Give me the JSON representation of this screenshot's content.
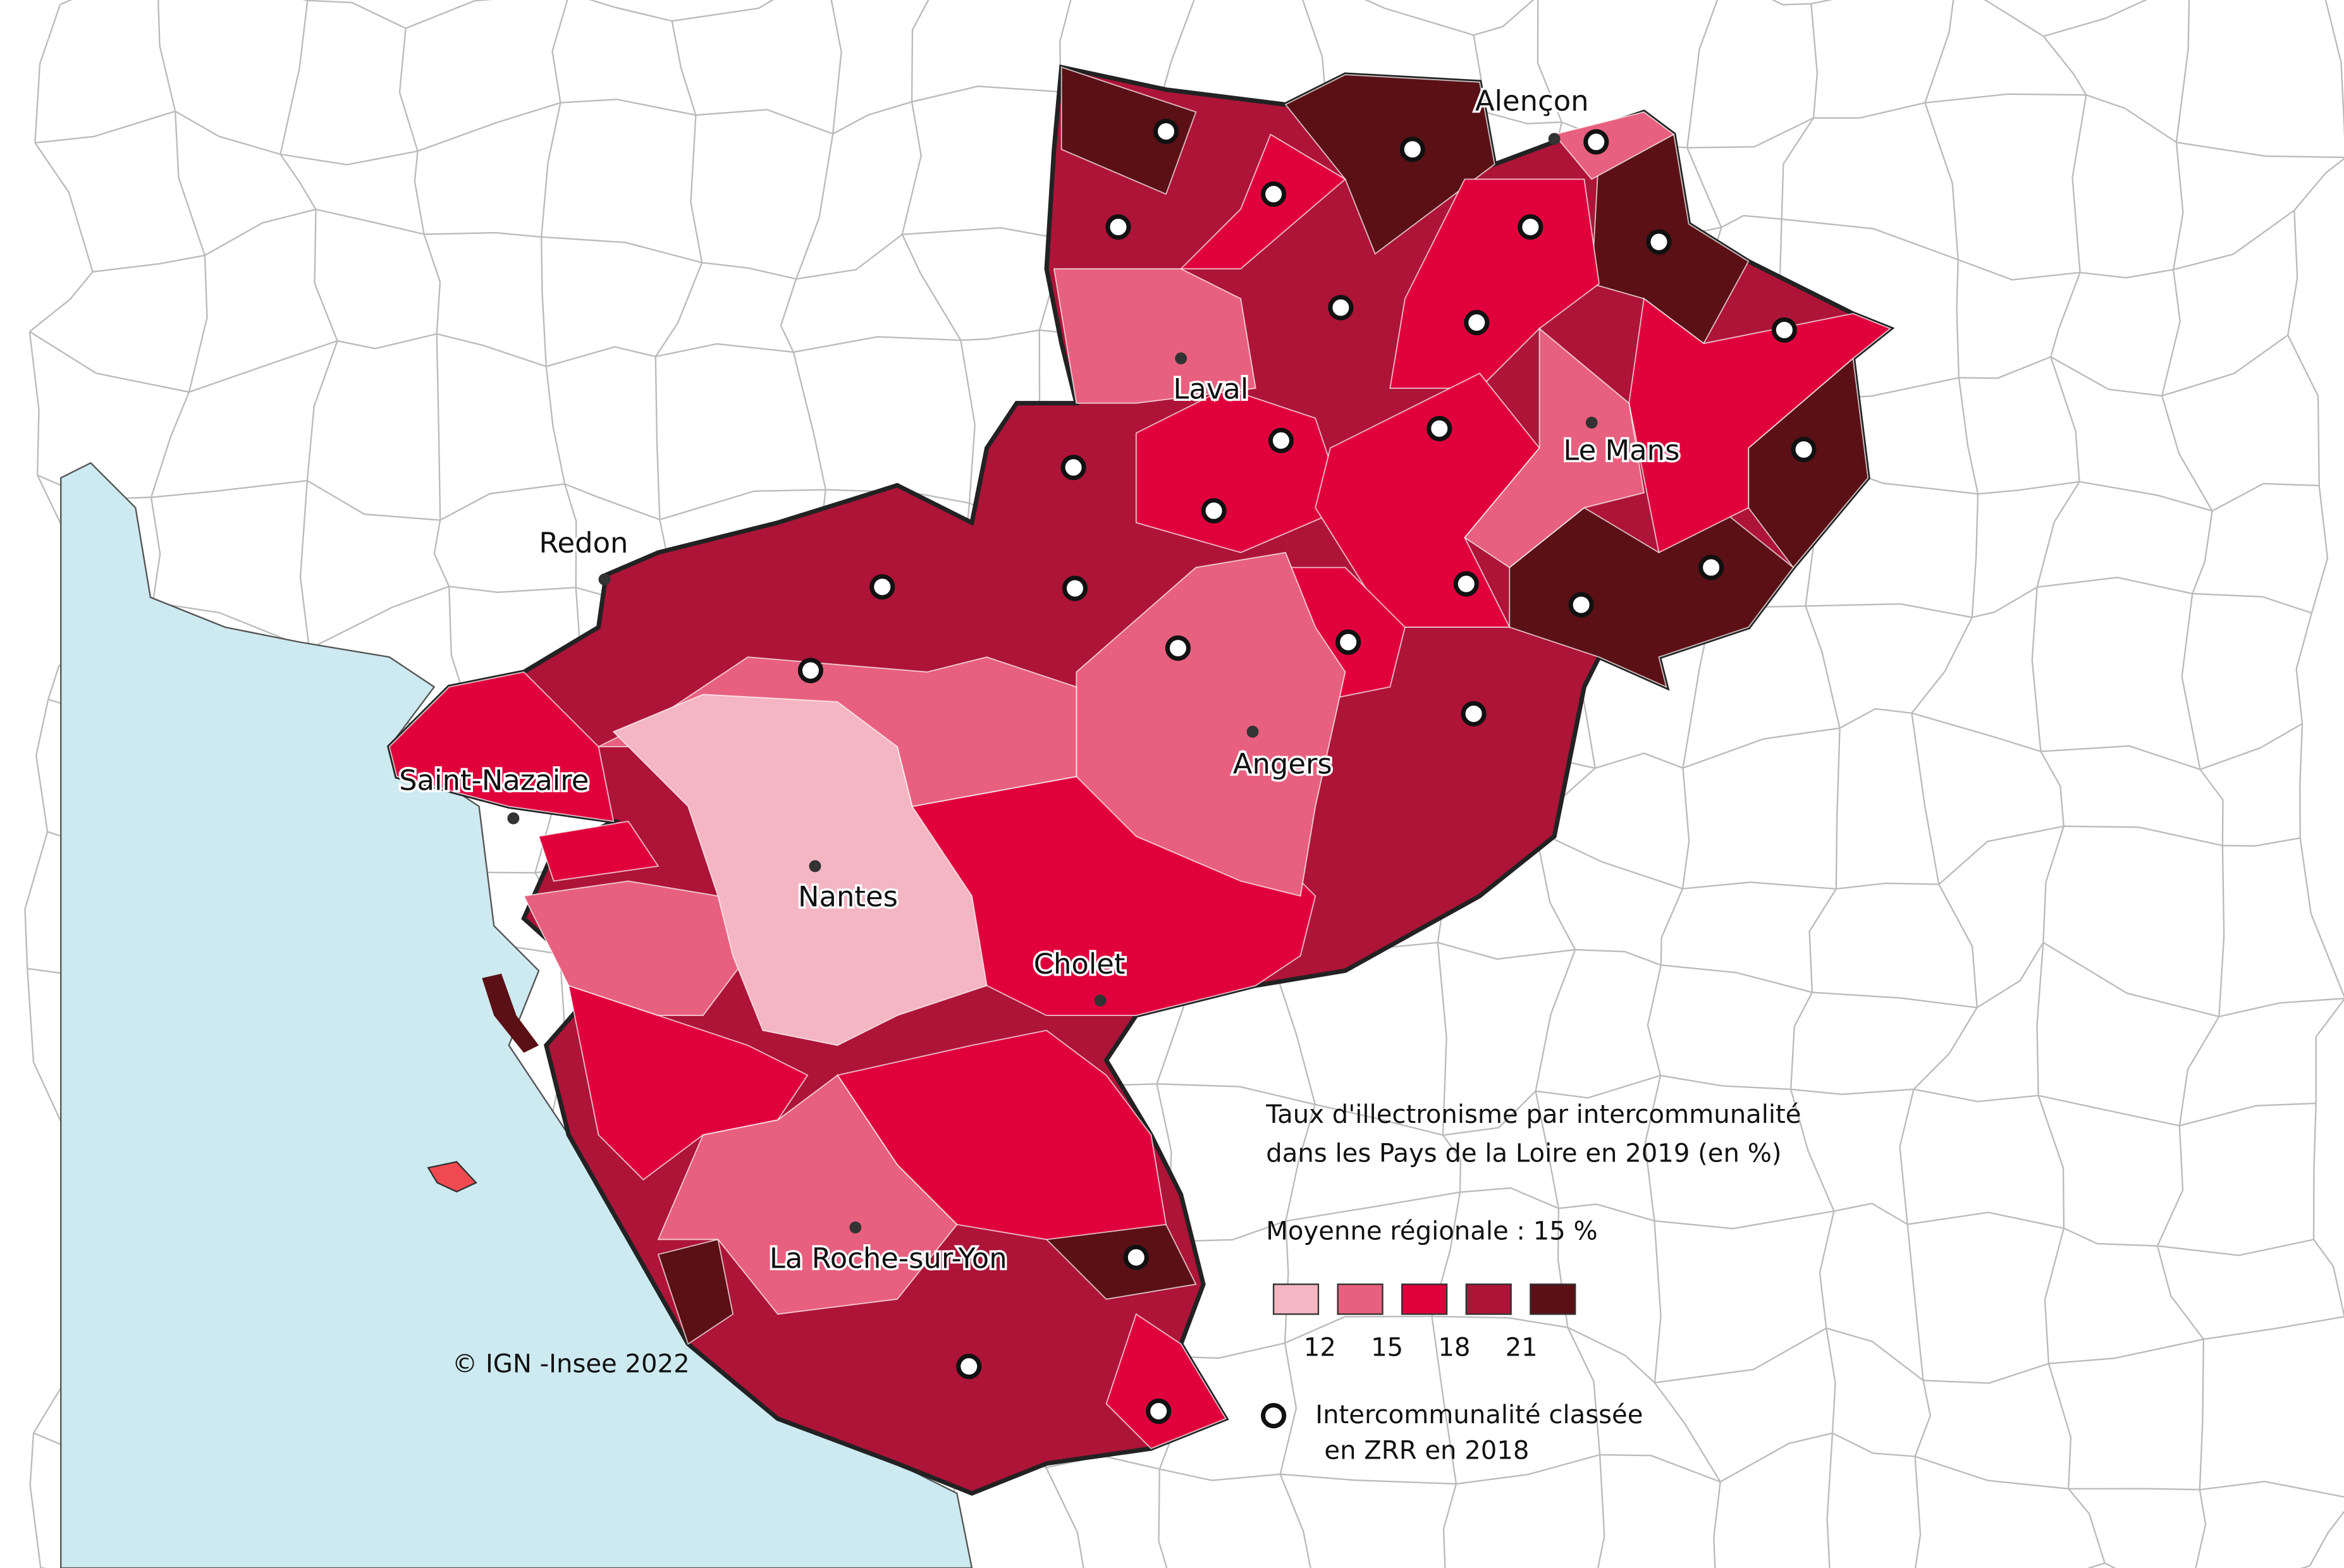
{
  "legend": {
    "title_lines": [
      "Taux d'illectronisme par intercommunalité",
      "dans les Pays de la Loire en 2019 (en %)"
    ],
    "average": "Moyenne régionale : 15 %",
    "colors": [
      "#f4b6c2",
      "#e8607f",
      "#e0003c",
      "#ad1438",
      "#5a1015"
    ],
    "breaks": [
      12,
      15,
      18,
      21
    ],
    "zrr_lines": [
      "Intercommunalité classée",
      "en ZRR en 2018"
    ]
  },
  "cities": [
    "Alençon",
    "Laval",
    "Le Mans",
    "Redon",
    "Saint-Nazaire",
    "Angers",
    "Nantes",
    "Cholet",
    "La Roche-sur-Yon"
  ],
  "credit": "© IGN -Insee 2022"
}
